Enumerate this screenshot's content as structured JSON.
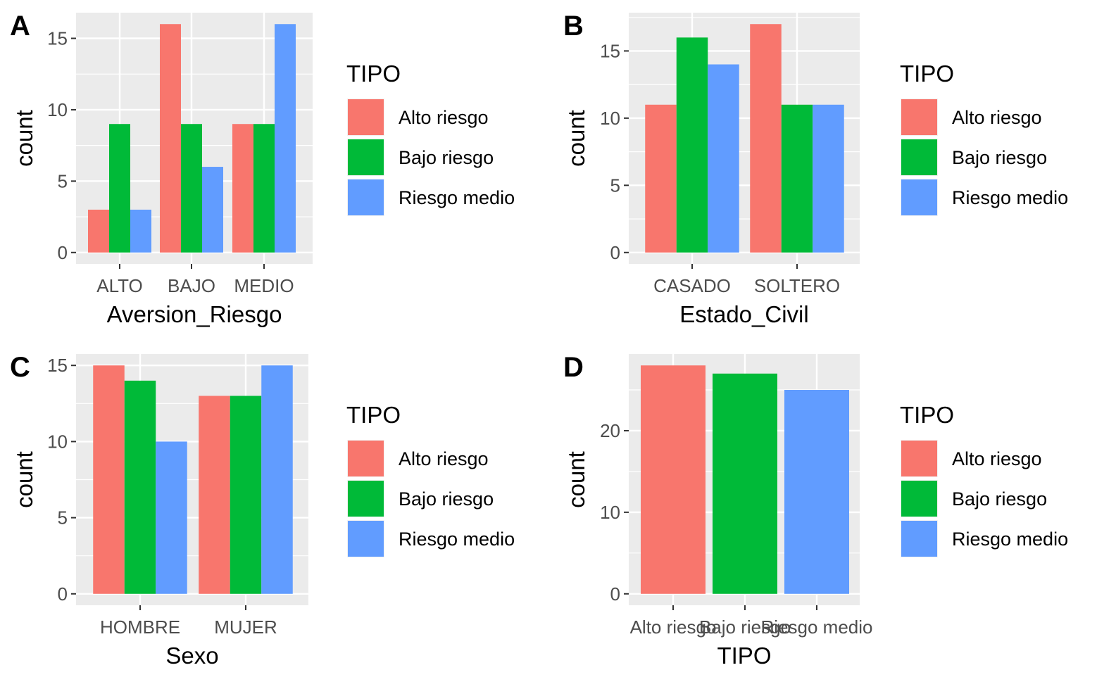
{
  "chart_data": [
    {
      "tag": "A",
      "type": "bar",
      "xlabel": "Aversion_Riesgo",
      "ylabel": "count",
      "categories": [
        "ALTO",
        "BAJO",
        "MEDIO"
      ],
      "series": [
        {
          "name": "Alto riesgo",
          "color": "#F8766D",
          "values": [
            3,
            16,
            9
          ]
        },
        {
          "name": "Bajo riesgo",
          "color": "#00BA38",
          "values": [
            9,
            9,
            9
          ]
        },
        {
          "name": "Riesgo medio",
          "color": "#619CFF",
          "values": [
            3,
            6,
            16
          ]
        }
      ],
      "yticks": [
        0,
        5,
        10,
        15
      ],
      "ylim": [
        -0.8,
        16.8
      ],
      "legend": {
        "title": "TIPO",
        "position": "right"
      }
    },
    {
      "tag": "B",
      "type": "bar",
      "xlabel": "Estado_Civil",
      "ylabel": "count",
      "categories": [
        "CASADO",
        "SOLTERO"
      ],
      "series": [
        {
          "name": "Alto riesgo",
          "color": "#F8766D",
          "values": [
            11,
            17
          ]
        },
        {
          "name": "Bajo riesgo",
          "color": "#00BA38",
          "values": [
            16,
            11
          ]
        },
        {
          "name": "Riesgo medio",
          "color": "#619CFF",
          "values": [
            14,
            11
          ]
        }
      ],
      "yticks": [
        0,
        5,
        10,
        15
      ],
      "ylim": [
        -0.85,
        17.85
      ],
      "legend": {
        "title": "TIPO",
        "position": "right"
      }
    },
    {
      "tag": "C",
      "type": "bar",
      "xlabel": "Sexo",
      "ylabel": "count",
      "categories": [
        "HOMBRE",
        "MUJER"
      ],
      "series": [
        {
          "name": "Alto riesgo",
          "color": "#F8766D",
          "values": [
            15,
            13
          ]
        },
        {
          "name": "Bajo riesgo",
          "color": "#00BA38",
          "values": [
            14,
            13
          ]
        },
        {
          "name": "Riesgo medio",
          "color": "#619CFF",
          "values": [
            10,
            15
          ]
        }
      ],
      "yticks": [
        0,
        5,
        10,
        15
      ],
      "ylim": [
        -0.75,
        15.75
      ],
      "legend": {
        "title": "TIPO",
        "position": "right"
      }
    },
    {
      "tag": "D",
      "type": "bar",
      "xlabel": "TIPO",
      "ylabel": "count",
      "categories": [
        "Alto riesgo",
        "Bajo riesgo",
        "Riesgo medio"
      ],
      "series": [
        {
          "name": "count",
          "values": [
            28,
            27,
            25
          ],
          "colors": [
            "#F8766D",
            "#00BA38",
            "#619CFF"
          ]
        }
      ],
      "yticks": [
        0,
        10,
        20
      ],
      "ylim": [
        -1.4,
        29.4
      ],
      "legend": {
        "title": "TIPO",
        "position": "right",
        "entries": [
          {
            "name": "Alto riesgo",
            "color": "#F8766D"
          },
          {
            "name": "Bajo riesgo",
            "color": "#00BA38"
          },
          {
            "name": "Riesgo medio",
            "color": "#619CFF"
          }
        ]
      }
    }
  ],
  "colors": {
    "panel_bg": "#EBEBEB",
    "grid": "#FFFFFF",
    "tick_text": "#4D4D4D"
  }
}
